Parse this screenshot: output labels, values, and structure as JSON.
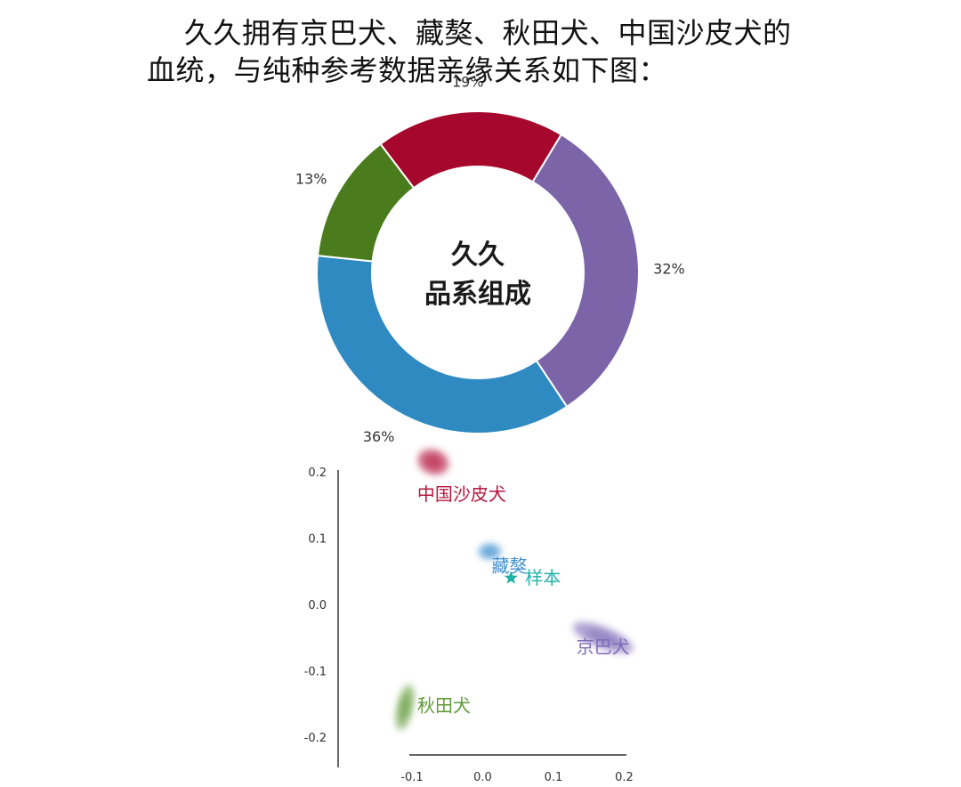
{
  "intro": {
    "line1": "久久拥有京巴犬、藏獒、秋田犬、中国沙皮犬的",
    "line2": "血统，与纯种参考数据亲缘关系如下图："
  },
  "chart_data": [
    {
      "type": "pie",
      "variant": "donut",
      "center_title": [
        "久久",
        "品系组成"
      ],
      "slices": [
        {
          "label": "19%",
          "value": 19,
          "color": "#a5072d"
        },
        {
          "label": "32%",
          "value": 32,
          "color": "#7b64a8"
        },
        {
          "label": "36%",
          "value": 36,
          "color": "#2f8ac2"
        },
        {
          "label": "13%",
          "value": 13,
          "color": "#4a7c1e"
        }
      ]
    },
    {
      "type": "scatter",
      "xlim": [
        -0.12,
        0.2
      ],
      "ylim": [
        -0.2,
        0.2
      ],
      "xticks": [
        -0.1,
        0.0,
        0.1,
        0.2
      ],
      "xtick_labels": [
        "-0.1",
        "0.0",
        "0.1",
        "0.2"
      ],
      "yticks": [
        0.2,
        0.1,
        0.0,
        -0.1,
        -0.2
      ],
      "ytick_labels": [
        "0.2",
        "0.1",
        "0.0",
        "-0.1",
        "-0.2"
      ],
      "grid": false,
      "clusters": [
        {
          "label": "中国沙皮犬",
          "x": -0.07,
          "y": 0.215,
          "color": "#b5173f"
        },
        {
          "label": "藏獒",
          "x": 0.01,
          "y": 0.08,
          "color": "#3d8fd0"
        },
        {
          "label": "京巴犬",
          "x": 0.17,
          "y": -0.05,
          "color": "#7b6cb8"
        },
        {
          "label": "秋田犬",
          "x": -0.11,
          "y": -0.155,
          "color": "#5f9a37"
        }
      ],
      "sample": {
        "label": "样本",
        "marker": "star-icon",
        "x": 0.04,
        "y": 0.04,
        "color": "#20b0a8"
      }
    }
  ]
}
